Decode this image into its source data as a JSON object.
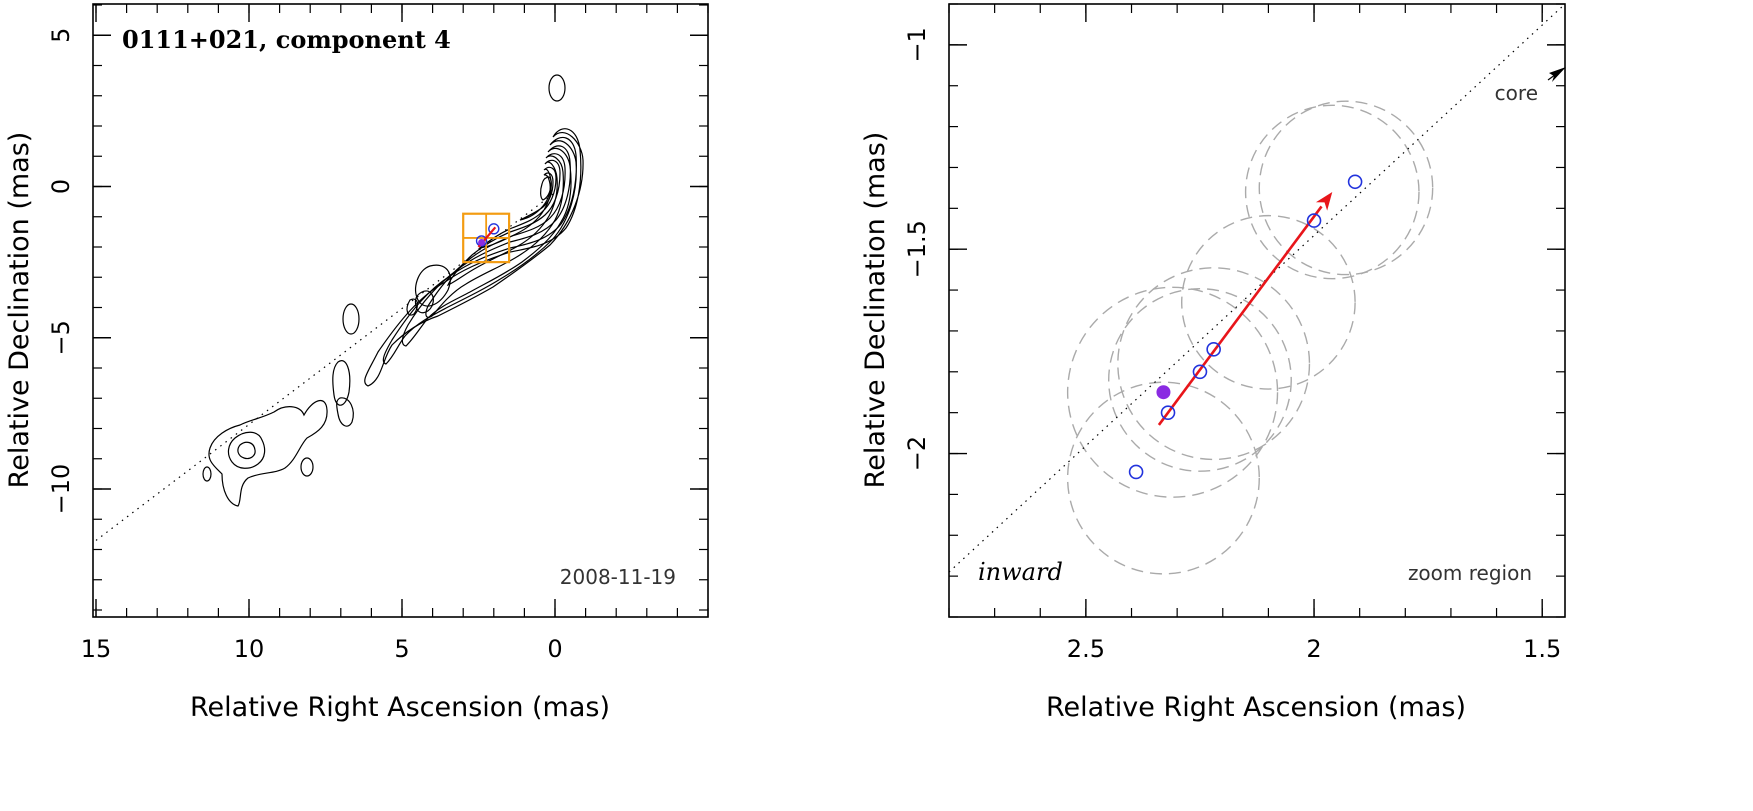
{
  "chart_data": [
    {
      "type": "contour",
      "title": "0111+021, component 4",
      "epoch": "2008-11-19",
      "xlabel": "Relative Right Ascension (mas)",
      "ylabel": "Relative Declination (mas)",
      "xlim": [
        15,
        -5
      ],
      "ylim": [
        -14,
        6
      ],
      "xticks": [
        15,
        10,
        5,
        0
      ],
      "xtick_labels": [
        "15",
        "10",
        "5",
        "0"
      ],
      "yticks": [
        5,
        0,
        -5,
        -10
      ],
      "ytick_labels": [
        "5",
        "0",
        "−5",
        "−10"
      ],
      "jet_axis": [
        [
          15,
          -11.7
        ],
        [
          0,
          -0.2
        ]
      ],
      "zoom_box": {
        "ra": [
          1.5,
          3.0
        ],
        "dec": [
          -2.5,
          -0.9
        ]
      },
      "component_positions": [
        [
          2.4,
          -1.8
        ],
        [
          2.0,
          -1.4
        ]
      ],
      "motion_arrow": [
        [
          2.5,
          -2.0
        ],
        [
          1.95,
          -1.35
        ]
      ]
    },
    {
      "type": "scatter",
      "title": "",
      "xlabel": "Relative Right Ascension (mas)",
      "ylabel": "Relative Declination (mas)",
      "xlim": [
        2.8,
        1.45
      ],
      "ylim": [
        -2.4,
        -0.9
      ],
      "xticks": [
        2.5,
        2,
        1.5
      ],
      "xtick_labels": [
        "2.5",
        "2",
        "1.5"
      ],
      "yticks": [
        -1,
        -1.5,
        -2
      ],
      "ytick_labels": [
        "−1",
        "−1.5",
        "−2"
      ],
      "labels": {
        "core": "core",
        "direction": "inward",
        "region": "zoom region"
      },
      "points": [
        {
          "x": 2.39,
          "y": -2.045,
          "filled": false
        },
        {
          "x": 2.32,
          "y": -1.9,
          "filled": false
        },
        {
          "x": 2.25,
          "y": -1.8,
          "filled": false
        },
        {
          "x": 2.22,
          "y": -1.745,
          "filled": false
        },
        {
          "x": 2.0,
          "y": -1.43,
          "filled": false
        },
        {
          "x": 1.91,
          "y": -1.335,
          "filled": false
        },
        {
          "x": 2.33,
          "y": -1.85,
          "filled": true
        }
      ],
      "error_circles": [
        {
          "x": 2.33,
          "y": -2.06,
          "r": 0.21
        },
        {
          "x": 2.31,
          "y": -1.85,
          "r": 0.23
        },
        {
          "x": 2.25,
          "y": -1.82,
          "r": 0.2
        },
        {
          "x": 2.22,
          "y": -1.78,
          "r": 0.21
        },
        {
          "x": 2.1,
          "y": -1.63,
          "r": 0.19
        },
        {
          "x": 1.96,
          "y": -1.36,
          "r": 0.19
        },
        {
          "x": 1.93,
          "y": -1.35,
          "r": 0.19
        }
      ],
      "motion_arrow": {
        "x0": 2.34,
        "y0": -1.93,
        "x1": 1.96,
        "y1": -1.36
      },
      "jet_axis": [
        [
          2.8,
          -2.29
        ],
        [
          1.45,
          -0.9
        ]
      ]
    }
  ],
  "colors": {
    "axis": "#000000",
    "contour": "#000000",
    "zoom_box": "#f39c12",
    "arrow": "#e8151a",
    "points": "#2233dd",
    "filled_point": "#8a2be2",
    "error_circle": "#aaaaaa"
  }
}
